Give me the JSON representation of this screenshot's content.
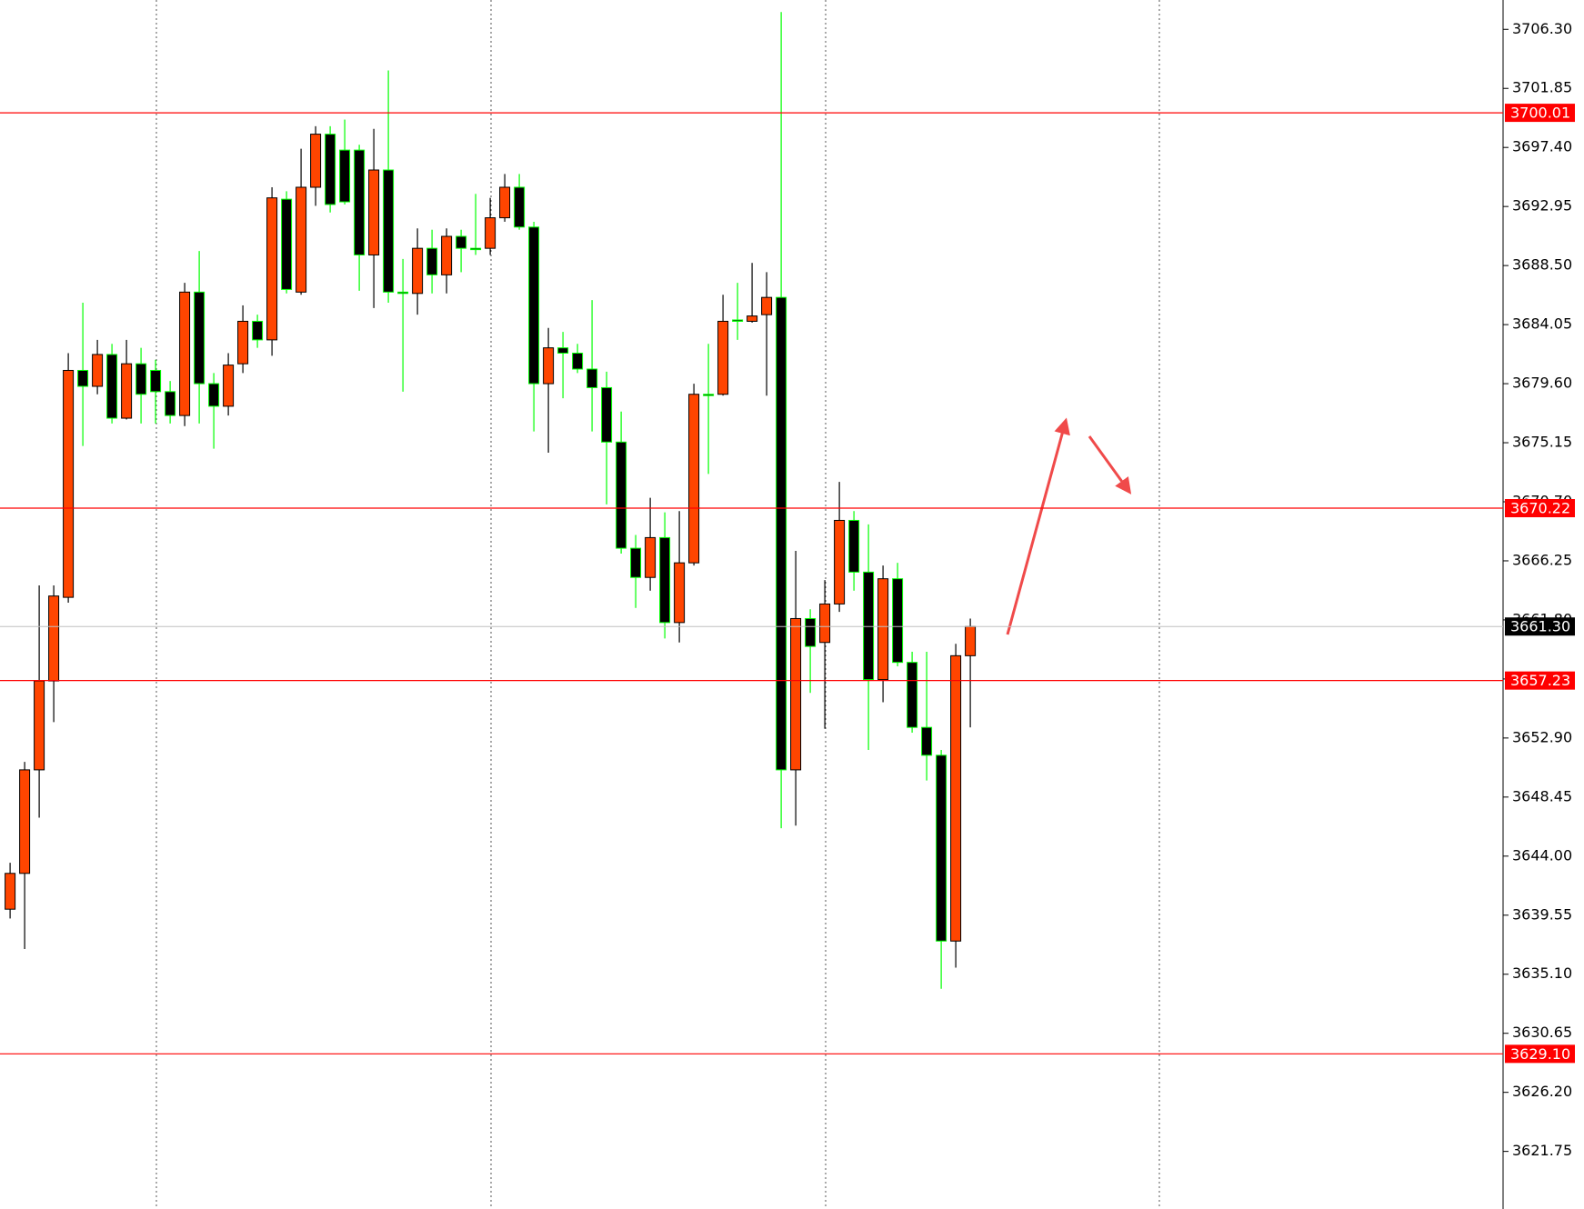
{
  "chart_data": {
    "type": "candlestick",
    "open": [
      3640.0,
      3642.7,
      3650.5,
      3657.2,
      3663.5,
      3680.6,
      3679.4,
      3681.8,
      3677.0,
      3681.1,
      3680.6,
      3679.0,
      3677.2,
      3686.5,
      3679.6,
      3677.9,
      3681.1,
      3684.3,
      3682.9,
      3693.5,
      3686.5,
      3694.4,
      3698.4,
      3697.2,
      3697.2,
      3689.3,
      3695.7,
      3686.5,
      3686.4,
      3689.8,
      3687.8,
      3690.7,
      3689.8,
      3689.8,
      3692.1,
      3694.4,
      3691.4,
      3679.6,
      3682.3,
      3681.9,
      3680.7,
      3679.3,
      3675.2,
      3667.2,
      3665.0,
      3668.0,
      3661.6,
      3666.1,
      3678.8,
      3678.8,
      3684.4,
      3684.3,
      3684.8,
      3686.1,
      3650.5,
      3661.9,
      3660.1,
      3663.0,
      3669.3,
      3665.4,
      3657.3,
      3664.9,
      3658.6,
      3653.7,
      3651.6,
      3637.6,
      3659.1
    ],
    "high": [
      3643.5,
      3651.1,
      3664.4,
      3664.4,
      3681.9,
      3685.7,
      3682.9,
      3682.6,
      3682.9,
      3682.3,
      3681.4,
      3679.8,
      3687.2,
      3689.6,
      3680.4,
      3681.9,
      3685.5,
      3684.8,
      3694.4,
      3694.1,
      3697.3,
      3699.0,
      3699.0,
      3699.5,
      3697.6,
      3698.8,
      3703.2,
      3689.0,
      3691.3,
      3691.2,
      3691.3,
      3691.2,
      3693.9,
      3693.6,
      3695.4,
      3695.4,
      3691.8,
      3683.8,
      3683.5,
      3682.6,
      3685.9,
      3680.5,
      3677.5,
      3668.2,
      3671.0,
      3669.9,
      3670.0,
      3679.6,
      3682.6,
      3686.3,
      3687.2,
      3688.7,
      3688.0,
      3707.6,
      3667.0,
      3662.6,
      3664.8,
      3672.2,
      3670.0,
      3669.0,
      3665.9,
      3666.1,
      3659.4,
      3659.4,
      3652.0,
      3660.0,
      3661.9
    ],
    "low": [
      3639.3,
      3637.0,
      3646.9,
      3654.1,
      3663.1,
      3674.9,
      3678.8,
      3676.6,
      3676.9,
      3676.6,
      3676.6,
      3676.6,
      3676.4,
      3676.6,
      3674.7,
      3677.2,
      3680.4,
      3682.3,
      3681.7,
      3686.4,
      3686.3,
      3693.0,
      3692.5,
      3693.1,
      3686.6,
      3685.3,
      3685.7,
      3679.0,
      3684.8,
      3686.4,
      3686.4,
      3688.0,
      3689.3,
      3689.3,
      3691.8,
      3691.2,
      3676.0,
      3674.4,
      3678.5,
      3680.4,
      3676.0,
      3670.5,
      3666.8,
      3662.7,
      3664.0,
      3660.4,
      3660.1,
      3665.9,
      3672.8,
      3678.7,
      3682.9,
      3684.2,
      3678.7,
      3646.1,
      3646.3,
      3656.3,
      3653.6,
      3662.4,
      3664.0,
      3652.0,
      3655.6,
      3658.3,
      3653.3,
      3649.7,
      3634.0,
      3635.6,
      3653.7
    ],
    "close": [
      3642.7,
      3650.5,
      3657.2,
      3663.6,
      3680.6,
      3679.4,
      3681.8,
      3677.0,
      3681.1,
      3678.8,
      3679.0,
      3677.2,
      3686.5,
      3679.6,
      3677.9,
      3681.0,
      3684.3,
      3682.9,
      3693.6,
      3686.7,
      3694.4,
      3698.4,
      3693.1,
      3693.3,
      3689.3,
      3695.7,
      3686.5,
      3686.4,
      3689.8,
      3687.8,
      3690.7,
      3689.8,
      3689.7,
      3692.1,
      3694.4,
      3691.4,
      3679.6,
      3682.3,
      3681.9,
      3680.7,
      3679.3,
      3675.2,
      3667.2,
      3665.0,
      3668.0,
      3661.6,
      3666.1,
      3678.8,
      3678.7,
      3684.3,
      3684.3,
      3684.7,
      3686.1,
      3650.5,
      3661.9,
      3659.8,
      3663.0,
      3669.3,
      3665.4,
      3657.3,
      3664.9,
      3658.6,
      3653.7,
      3651.6,
      3637.6,
      3659.1,
      3661.3
    ],
    "up_color": "#ff4500",
    "down_color": "#000000",
    "down_wick_color": "#00ff00",
    "up_wick_color": "#000000",
    "ylim": [
      3617.41,
      3708.51
    ],
    "yticks": [
      {
        "value": 3621.75,
        "label": "3621.75"
      },
      {
        "value": 3626.2,
        "label": "3626.20"
      },
      3630.65,
      {
        "value": 3635.1,
        "label": "3635.10"
      },
      3639.55,
      {
        "value": 3644.0,
        "label": "3644.00"
      },
      3648.45,
      {
        "value": 3652.9,
        "label": "3652.90"
      },
      3657.35,
      {
        "value": 3661.8,
        "label": "3661.80"
      },
      3666.25,
      {
        "value": 3670.7,
        "label": "3670.70"
      },
      3675.15,
      {
        "value": 3679.6,
        "label": "3679.60"
      },
      3684.05,
      {
        "value": 3688.5,
        "label": "3688.50"
      },
      3692.95,
      {
        "value": 3697.4,
        "label": "3697.40"
      },
      3701.85,
      {
        "value": 3706.3,
        "label": "3706.30"
      }
    ],
    "levels": [
      3700.01,
      3670.22,
      3657.23,
      {
        "value": 3629.1,
        "label": "3629.10"
      }
    ],
    "level_color": "#ff0000",
    "current_price": {
      "value": 3661.3,
      "label": "3661.30"
    },
    "current_price_color": "#c0c0c0"
  }
}
